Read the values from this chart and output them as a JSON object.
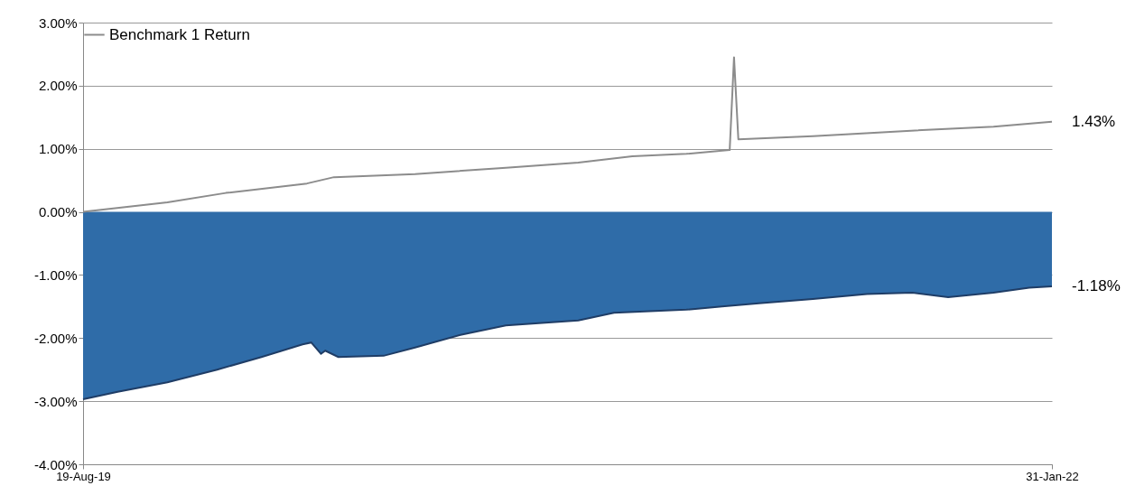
{
  "chart_data": {
    "type": "area",
    "legend": "top",
    "grid": "y",
    "xlim": [
      "2019-08-19",
      "2022-01-31"
    ],
    "xticks": [
      {
        "value": "2019-08-19",
        "label": "19-Aug-19"
      },
      {
        "value": "2022-01-31",
        "label": "31-Jan-22"
      }
    ],
    "ylim": [
      -4,
      3
    ],
    "yticks": [
      {
        "value": -4,
        "label": "-4.00%"
      },
      {
        "value": -3,
        "label": "-3.00%"
      },
      {
        "value": -2,
        "label": "-2.00%"
      },
      {
        "value": -1,
        "label": "-1.00%"
      },
      {
        "value": 0,
        "label": "0.00%"
      },
      {
        "value": 1,
        "label": "1.00%"
      },
      {
        "value": 2,
        "label": "2.00%"
      },
      {
        "value": 3,
        "label": "3.00%"
      }
    ],
    "series": [
      {
        "color": "#2f6ca8",
        "x": [
          "2019-08-19",
          "2019-09-20",
          "2019-11-05",
          "2019-12-21",
          "2020-01-31",
          "2020-03-09",
          "2020-03-17",
          "2020-03-26",
          "2020-03-30",
          "2020-04-11",
          "2020-05-23",
          "2020-06-21",
          "2020-08-02",
          "2020-09-13",
          "2020-11-19",
          "2020-12-22",
          "2021-02-27",
          "2021-04-01",
          "2021-05-05",
          "2021-06-24",
          "2021-08-13",
          "2021-09-24",
          "2021-10-27",
          "2021-12-08",
          "2022-01-10",
          "2022-01-31"
        ],
        "values": [
          -2.97,
          -2.85,
          -2.7,
          -2.5,
          -2.3,
          -2.1,
          -2.07,
          -2.25,
          -2.2,
          -2.3,
          -2.28,
          -2.15,
          -1.95,
          -1.8,
          -1.72,
          -1.6,
          -1.55,
          -1.5,
          -1.45,
          -1.38,
          -1.3,
          -1.28,
          -1.35,
          -1.28,
          -1.2,
          -1.18
        ]
      },
      {
        "type": "line",
        "name": "Benchmark 1 Return",
        "color": "#8c8c8c",
        "x": [
          "2019-08-19",
          "2019-11-05",
          "2019-12-29",
          "2020-03-13",
          "2020-04-07",
          "2020-06-21",
          "2020-09-13",
          "2020-11-19",
          "2021-01-08",
          "2021-02-27",
          "2021-04-08",
          "2021-04-12",
          "2021-04-16",
          "2021-06-24",
          "2021-09-15",
          "2021-12-08",
          "2022-01-31"
        ],
        "values": [
          0,
          0.15,
          0.3,
          0.45,
          0.55,
          0.6,
          0.7,
          0.78,
          0.88,
          0.92,
          0.98,
          2.45,
          1.15,
          1.2,
          1.28,
          1.35,
          1.43
        ]
      }
    ],
    "annotations": [
      {
        "text": "1.43%",
        "x": "2022-01-31",
        "y": 1.43
      },
      {
        "text": "-1.18%",
        "x": "2022-01-31",
        "y": -1.18
      }
    ]
  }
}
